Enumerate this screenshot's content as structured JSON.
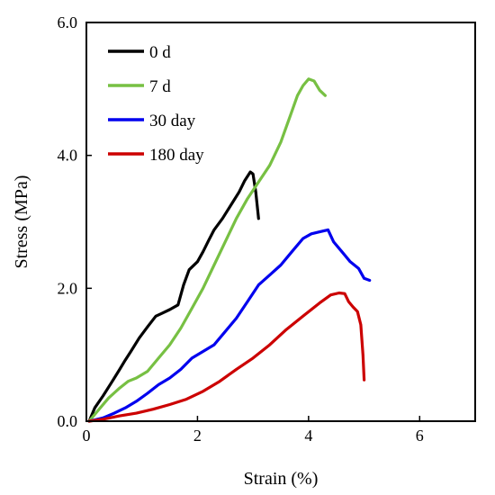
{
  "chart_data": {
    "type": "line",
    "xlabel": "Strain (%)",
    "ylabel": "Stress (MPa)",
    "xlim": [
      0,
      7
    ],
    "ylim": [
      0,
      6
    ],
    "x_ticks": [
      {
        "value": 0,
        "label": "0"
      },
      {
        "value": 2,
        "label": "2"
      },
      {
        "value": 4,
        "label": "4"
      },
      {
        "value": 6,
        "label": "6"
      }
    ],
    "y_ticks": [
      {
        "value": 0,
        "label": "0.0"
      },
      {
        "value": 2,
        "label": "2.0"
      },
      {
        "value": 4,
        "label": "4.0"
      },
      {
        "value": 6,
        "label": "6.0"
      }
    ],
    "grid": false,
    "legend_position": "top-left",
    "series": [
      {
        "name": "0 d",
        "color": "#000000",
        "x": [
          0.05,
          0.15,
          0.3,
          0.45,
          0.6,
          0.7,
          0.8,
          0.95,
          1.1,
          1.25,
          1.35,
          1.5,
          1.65,
          1.75,
          1.85,
          2.0,
          2.1,
          2.2,
          2.3,
          2.45,
          2.6,
          2.75,
          2.85,
          2.95,
          3.0,
          3.05,
          3.1
        ],
        "y": [
          0.0,
          0.2,
          0.38,
          0.58,
          0.78,
          0.92,
          1.05,
          1.25,
          1.42,
          1.58,
          1.62,
          1.68,
          1.75,
          2.05,
          2.28,
          2.4,
          2.55,
          2.72,
          2.88,
          3.05,
          3.25,
          3.45,
          3.62,
          3.75,
          3.72,
          3.45,
          3.05
        ]
      },
      {
        "name": "7 d",
        "color": "#77c043",
        "x": [
          0.05,
          0.2,
          0.4,
          0.6,
          0.75,
          0.9,
          1.1,
          1.3,
          1.5,
          1.7,
          1.9,
          2.1,
          2.3,
          2.5,
          2.7,
          2.9,
          3.1,
          3.3,
          3.5,
          3.65,
          3.8,
          3.9,
          4.0,
          4.1,
          4.2,
          4.3
        ],
        "y": [
          0.0,
          0.15,
          0.35,
          0.5,
          0.6,
          0.65,
          0.75,
          0.95,
          1.15,
          1.4,
          1.7,
          2.0,
          2.35,
          2.7,
          3.05,
          3.35,
          3.6,
          3.85,
          4.2,
          4.55,
          4.9,
          5.05,
          5.15,
          5.12,
          4.98,
          4.9
        ]
      },
      {
        "name": "30 day",
        "color": "#0000ee",
        "x": [
          0.05,
          0.3,
          0.5,
          0.7,
          0.9,
          1.1,
          1.3,
          1.5,
          1.7,
          1.9,
          2.1,
          2.3,
          2.5,
          2.7,
          2.9,
          3.1,
          3.3,
          3.5,
          3.7,
          3.9,
          4.05,
          4.2,
          4.35,
          4.45,
          4.6,
          4.75,
          4.9,
          5.0,
          5.1
        ],
        "y": [
          0.0,
          0.05,
          0.12,
          0.2,
          0.3,
          0.42,
          0.55,
          0.65,
          0.78,
          0.95,
          1.05,
          1.15,
          1.35,
          1.55,
          1.8,
          2.05,
          2.2,
          2.35,
          2.55,
          2.75,
          2.82,
          2.85,
          2.88,
          2.7,
          2.55,
          2.4,
          2.3,
          2.15,
          2.12
        ]
      },
      {
        "name": "180 day",
        "color": "#cc0000",
        "x": [
          0.05,
          0.3,
          0.6,
          0.9,
          1.2,
          1.5,
          1.8,
          2.1,
          2.4,
          2.7,
          3.0,
          3.3,
          3.6,
          3.9,
          4.2,
          4.4,
          4.55,
          4.65,
          4.72,
          4.8,
          4.88,
          4.94,
          4.98,
          5.0
        ],
        "y": [
          0.0,
          0.03,
          0.08,
          0.12,
          0.18,
          0.25,
          0.33,
          0.45,
          0.6,
          0.78,
          0.95,
          1.15,
          1.38,
          1.58,
          1.78,
          1.9,
          1.93,
          1.92,
          1.8,
          1.72,
          1.65,
          1.45,
          1.0,
          0.62
        ]
      }
    ]
  }
}
